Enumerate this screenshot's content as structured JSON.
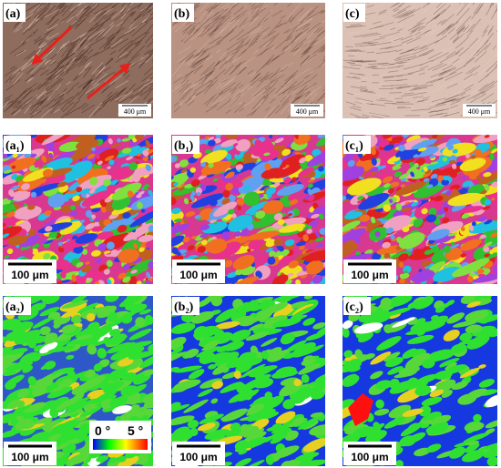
{
  "panels": [
    {
      "label": "(a)",
      "scale_bar": "400 μm"
    },
    {
      "label": "(b)",
      "scale_bar": "400 μm"
    },
    {
      "label": "(c)",
      "scale_bar": "400 μm"
    },
    {
      "label": "(a₁)",
      "scale_bar": "100 μm"
    },
    {
      "label": "(b₁)",
      "scale_bar": "100 μm"
    },
    {
      "label": "(c₁)",
      "scale_bar": "100 μm"
    },
    {
      "label": "(a₂)",
      "scale_bar": "100 μm"
    },
    {
      "label": "(b₂)",
      "scale_bar": "100 μm"
    },
    {
      "label": "(c₂)",
      "scale_bar": "100 μm"
    }
  ],
  "colorbar": {
    "min_label": "0 °",
    "max_label": "5 °"
  }
}
